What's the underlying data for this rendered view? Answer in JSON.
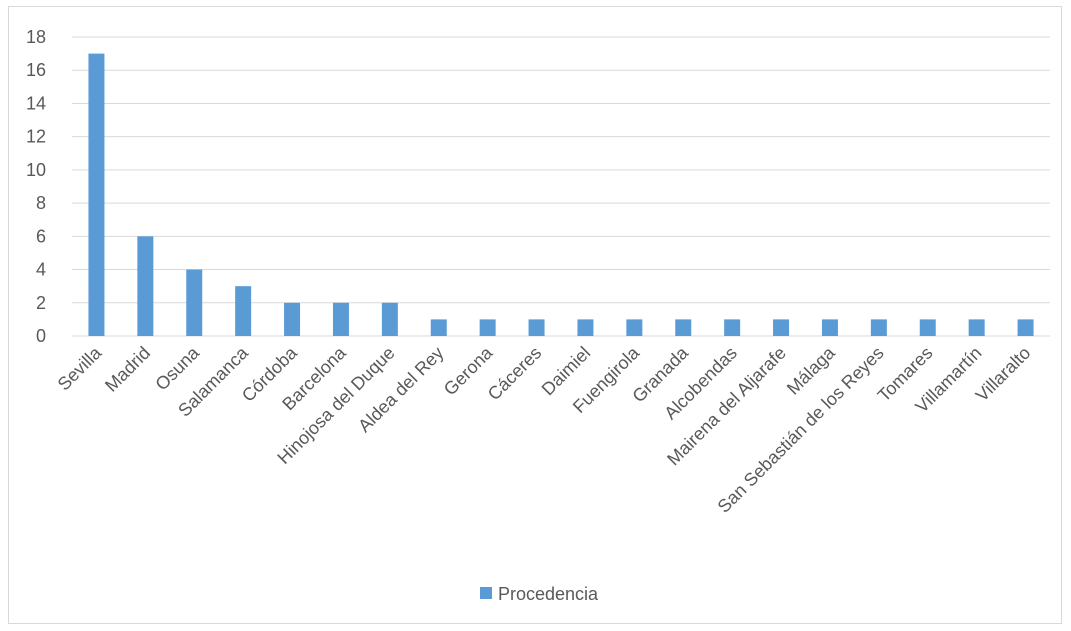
{
  "chart_data": {
    "type": "bar",
    "categories": [
      "Sevilla",
      "Madrid",
      "Osuna",
      "Salamanca",
      "Córdoba",
      "Barcelona",
      "Hinojosa del Duque",
      "Aldea del Rey",
      "Gerona",
      "Cáceres",
      "Daimiel",
      "Fuengirola",
      "Granada",
      "Alcobendas",
      "Mairena del Aljarafe",
      "Málaga",
      "San Sebastián de los Reyes",
      "Tomares",
      "Villamartín",
      "Villaralto"
    ],
    "series": [
      {
        "name": "Procedencia",
        "values": [
          17,
          6,
          4,
          3,
          2,
          2,
          2,
          1,
          1,
          1,
          1,
          1,
          1,
          1,
          1,
          1,
          1,
          1,
          1,
          1
        ],
        "color": "#5b9bd5"
      }
    ],
    "ylim": [
      0,
      18
    ],
    "yticks": [
      0,
      2,
      4,
      6,
      8,
      10,
      12,
      14,
      16,
      18
    ],
    "grid": true,
    "legend": "bottom",
    "colors": {
      "bar": "#5b9bd5",
      "grid": "#d9d9d9",
      "text": "#595959"
    }
  }
}
